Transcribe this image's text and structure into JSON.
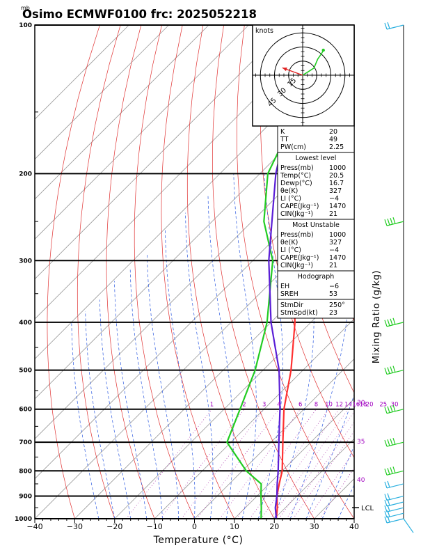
{
  "header": {
    "unit_mb": "mb",
    "title": "Osimo ECMWF0100 frc: 2025052218"
  },
  "axes": {
    "xlabel": "Temperature (°C)",
    "ylabel": "Mixing Ratio (g/kg)",
    "x_ticks": [
      "−40",
      "−30",
      "−20",
      "−10",
      "0",
      "10",
      "20",
      "30",
      "40"
    ],
    "pressure_levels": [
      "100",
      "200",
      "300",
      "400",
      "500",
      "600",
      "700",
      "800",
      "900",
      "1000"
    ]
  },
  "mixing_ratio_labels": [
    "1",
    "2",
    "3",
    "4",
    "6",
    "8",
    "10",
    "12",
    "14",
    "16",
    "18",
    "20",
    "25",
    "30"
  ],
  "theta_labels": [
    "30",
    "35",
    "40"
  ],
  "lcl_label": "LCL",
  "hodograph": {
    "unit": "knots",
    "rings": [
      "15",
      "30",
      "45"
    ]
  },
  "indices": {
    "top": [
      {
        "k": "K",
        "v": "20"
      },
      {
        "k": "TT",
        "v": "49"
      },
      {
        "k": "PW(cm)",
        "v": "2.25"
      }
    ],
    "lowest_title": "Lowest level",
    "lowest": [
      {
        "k": "Press(mb)",
        "v": "1000"
      },
      {
        "k": "Temp(°C)",
        "v": "20.5"
      },
      {
        "k": "Dewp(°C)",
        "v": "16.7"
      },
      {
        "k": "θe(K)",
        "v": "327"
      },
      {
        "k": "LI (°C)",
        "v": "−4"
      },
      {
        "k": "CAPE(Jkg⁻¹)",
        "v": "1470"
      },
      {
        "k": "CIN(Jkg⁻¹)",
        "v": "21"
      }
    ],
    "unstable_title": "Most Unstable",
    "unstable": [
      {
        "k": "Press(mb)",
        "v": "1000"
      },
      {
        "k": "θe(K)",
        "v": "327"
      },
      {
        "k": "LI (°C)",
        "v": "−4"
      },
      {
        "k": "CAPE(Jkg⁻¹)",
        "v": "1470"
      },
      {
        "k": "CIN(Jkg⁻¹)",
        "v": "21"
      }
    ],
    "hodo_title": "Hodograph",
    "hodo": [
      {
        "k": "EH",
        "v": "−6"
      },
      {
        "k": "SREH",
        "v": "53"
      }
    ],
    "storm": [
      {
        "k": "StmDir",
        "v": "250°"
      },
      {
        "k": "StmSpd(kt)",
        "v": "23"
      }
    ]
  },
  "chart_data": {
    "type": "line",
    "title": "Osimo ECMWF0100 frc: 2025052218",
    "xlabel": "Temperature (°C)",
    "ylabel": "Mixing Ratio (g/kg)",
    "xlim": [
      -40,
      40
    ],
    "ylim_pressure_hpa": [
      1000,
      100
    ],
    "log_pressure": true,
    "series": [
      {
        "name": "Temp",
        "color": "#ff3030",
        "points": [
          [
            1000,
            20.5
          ],
          [
            950,
            18
          ],
          [
            900,
            15
          ],
          [
            850,
            12.5
          ],
          [
            800,
            10
          ],
          [
            700,
            3
          ],
          [
            600,
            -5
          ],
          [
            500,
            -13
          ],
          [
            400,
            -24
          ],
          [
            300,
            -40
          ],
          [
            250,
            -50
          ],
          [
            200,
            -53
          ],
          [
            150,
            -58
          ],
          [
            100,
            -61
          ]
        ]
      },
      {
        "name": "Dewp",
        "color": "#22cc22",
        "points": [
          [
            1000,
            16.7
          ],
          [
            950,
            14
          ],
          [
            900,
            11
          ],
          [
            850,
            8
          ],
          [
            800,
            1
          ],
          [
            700,
            -11
          ],
          [
            600,
            -16
          ],
          [
            500,
            -22
          ],
          [
            400,
            -31
          ],
          [
            300,
            -45
          ],
          [
            250,
            -57
          ],
          [
            200,
            -68
          ],
          [
            150,
            -76
          ],
          [
            100,
            -85
          ]
        ]
      },
      {
        "color": "#5a1ed6",
        "points": [
          [
            1000,
            20.5
          ],
          [
            950,
            17.5
          ],
          [
            900,
            15
          ],
          [
            850,
            12
          ],
          [
            800,
            9
          ],
          [
            700,
            2
          ],
          [
            600,
            -6
          ],
          [
            500,
            -16
          ],
          [
            400,
            -30
          ],
          [
            300,
            -46
          ],
          [
            250,
            -55
          ],
          [
            200,
            -66
          ],
          [
            150,
            -78
          ],
          [
            100,
            -91
          ]
        ]
      }
    ],
    "lcl_hpa": 950,
    "wind_barbs_right": [
      100,
      250,
      400,
      500,
      600,
      700,
      800,
      850,
      900,
      925,
      950,
      975,
      1000
    ],
    "hodograph_points": [
      [
        0,
        0
      ],
      [
        6,
        2
      ],
      [
        12,
        4
      ],
      [
        16,
        9
      ],
      [
        20,
        12
      ],
      [
        22,
        14
      ]
    ],
    "storm_motion": {
      "dir": 250,
      "spd": 23
    }
  }
}
